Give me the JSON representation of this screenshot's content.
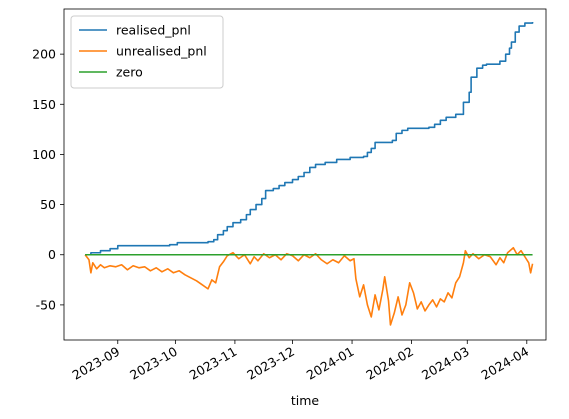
{
  "chart_data": {
    "type": "line",
    "xlabel": "time",
    "ylabel": "",
    "title": "",
    "x_axis_kind": "date",
    "xlim": [
      "2023-08-04",
      "2024-04-11"
    ],
    "ylim": [
      -85,
      245
    ],
    "x_ticks": [
      {
        "date": "2023-09-01",
        "label": "2023-09"
      },
      {
        "date": "2023-10-01",
        "label": "2023-10"
      },
      {
        "date": "2023-11-01",
        "label": "2023-11"
      },
      {
        "date": "2023-12-01",
        "label": "2023-12"
      },
      {
        "date": "2024-01-01",
        "label": "2024-01"
      },
      {
        "date": "2024-02-01",
        "label": "2024-02"
      },
      {
        "date": "2024-03-01",
        "label": "2024-03"
      },
      {
        "date": "2024-04-01",
        "label": "2024-04"
      }
    ],
    "y_ticks": [
      -50,
      0,
      50,
      100,
      150,
      200
    ],
    "grid": false,
    "legend_position": "upper-left",
    "series": [
      {
        "name": "realised_pnl",
        "color": "#1f77b4",
        "step": true,
        "points": [
          [
            "2023-08-15",
            0
          ],
          [
            "2023-08-18",
            2
          ],
          [
            "2023-08-23",
            4
          ],
          [
            "2023-08-28",
            6
          ],
          [
            "2023-09-01",
            9
          ],
          [
            "2023-09-18",
            9
          ],
          [
            "2023-09-28",
            10
          ],
          [
            "2023-10-02",
            12
          ],
          [
            "2023-10-12",
            12
          ],
          [
            "2023-10-18",
            13
          ],
          [
            "2023-10-21",
            15
          ],
          [
            "2023-10-23",
            20
          ],
          [
            "2023-10-26",
            24
          ],
          [
            "2023-10-28",
            28
          ],
          [
            "2023-10-31",
            32
          ],
          [
            "2023-11-04",
            35
          ],
          [
            "2023-11-07",
            40
          ],
          [
            "2023-11-09",
            45
          ],
          [
            "2023-11-12",
            50
          ],
          [
            "2023-11-15",
            56
          ],
          [
            "2023-11-17",
            64
          ],
          [
            "2023-11-21",
            66
          ],
          [
            "2023-11-24",
            69
          ],
          [
            "2023-11-27",
            72
          ],
          [
            "2023-12-01",
            75
          ],
          [
            "2023-12-04",
            78
          ],
          [
            "2023-12-07",
            82
          ],
          [
            "2023-12-10",
            87
          ],
          [
            "2023-12-13",
            90
          ],
          [
            "2023-12-18",
            92
          ],
          [
            "2023-12-24",
            95
          ],
          [
            "2023-12-31",
            97
          ],
          [
            "2024-01-07",
            98
          ],
          [
            "2024-01-09",
            102
          ],
          [
            "2024-01-11",
            106
          ],
          [
            "2024-01-13",
            112
          ],
          [
            "2024-01-22",
            114
          ],
          [
            "2024-01-24",
            121
          ],
          [
            "2024-01-27",
            124
          ],
          [
            "2024-01-30",
            126
          ],
          [
            "2024-02-10",
            127
          ],
          [
            "2024-02-13",
            130
          ],
          [
            "2024-02-16",
            134
          ],
          [
            "2024-02-19",
            137
          ],
          [
            "2024-02-24",
            140
          ],
          [
            "2024-02-28",
            152
          ],
          [
            "2024-03-02",
            162
          ],
          [
            "2024-03-03",
            177
          ],
          [
            "2024-03-06",
            186
          ],
          [
            "2024-03-09",
            189
          ],
          [
            "2024-03-11",
            190
          ],
          [
            "2024-03-18",
            193
          ],
          [
            "2024-03-21",
            200
          ],
          [
            "2024-03-23",
            206
          ],
          [
            "2024-03-24",
            212
          ],
          [
            "2024-03-26",
            222
          ],
          [
            "2024-03-28",
            228
          ],
          [
            "2024-03-31",
            231
          ],
          [
            "2024-04-04",
            232
          ]
        ]
      },
      {
        "name": "unrealised_pnl",
        "color": "#ff7f0e",
        "step": false,
        "points": [
          [
            "2023-08-15",
            0
          ],
          [
            "2023-08-17",
            -5
          ],
          [
            "2023-08-18",
            -18
          ],
          [
            "2023-08-19",
            -8
          ],
          [
            "2023-08-21",
            -14
          ],
          [
            "2023-08-23",
            -10
          ],
          [
            "2023-08-25",
            -13
          ],
          [
            "2023-08-28",
            -11
          ],
          [
            "2023-08-31",
            -12
          ],
          [
            "2023-09-03",
            -10
          ],
          [
            "2023-09-06",
            -15
          ],
          [
            "2023-09-09",
            -11
          ],
          [
            "2023-09-12",
            -13
          ],
          [
            "2023-09-15",
            -12
          ],
          [
            "2023-09-18",
            -16
          ],
          [
            "2023-09-21",
            -13
          ],
          [
            "2023-09-24",
            -17
          ],
          [
            "2023-09-27",
            -14
          ],
          [
            "2023-09-30",
            -18
          ],
          [
            "2023-10-03",
            -16
          ],
          [
            "2023-10-06",
            -20
          ],
          [
            "2023-10-09",
            -23
          ],
          [
            "2023-10-12",
            -26
          ],
          [
            "2023-10-15",
            -30
          ],
          [
            "2023-10-18",
            -34
          ],
          [
            "2023-10-20",
            -25
          ],
          [
            "2023-10-22",
            -28
          ],
          [
            "2023-10-24",
            -12
          ],
          [
            "2023-10-26",
            -7
          ],
          [
            "2023-10-28",
            -1
          ],
          [
            "2023-10-31",
            2
          ],
          [
            "2023-11-03",
            -4
          ],
          [
            "2023-11-06",
            0
          ],
          [
            "2023-11-09",
            -9
          ],
          [
            "2023-11-11",
            -2
          ],
          [
            "2023-11-13",
            -6
          ],
          [
            "2023-11-16",
            1
          ],
          [
            "2023-11-19",
            -3
          ],
          [
            "2023-11-22",
            0
          ],
          [
            "2023-11-25",
            -5
          ],
          [
            "2023-11-28",
            1
          ],
          [
            "2023-12-01",
            -1
          ],
          [
            "2023-12-04",
            -6
          ],
          [
            "2023-12-07",
            0
          ],
          [
            "2023-12-10",
            -3
          ],
          [
            "2023-12-13",
            1
          ],
          [
            "2023-12-16",
            -5
          ],
          [
            "2023-12-19",
            -9
          ],
          [
            "2023-12-22",
            -5
          ],
          [
            "2023-12-25",
            -8
          ],
          [
            "2023-12-28",
            -1
          ],
          [
            "2023-12-31",
            -6
          ],
          [
            "2024-01-02",
            -4
          ],
          [
            "2024-01-03",
            -24
          ],
          [
            "2024-01-05",
            -42
          ],
          [
            "2024-01-07",
            -30
          ],
          [
            "2024-01-09",
            -50
          ],
          [
            "2024-01-11",
            -62
          ],
          [
            "2024-01-13",
            -40
          ],
          [
            "2024-01-15",
            -55
          ],
          [
            "2024-01-17",
            -35
          ],
          [
            "2024-01-18",
            -22
          ],
          [
            "2024-01-20",
            -46
          ],
          [
            "2024-01-21",
            -70
          ],
          [
            "2024-01-23",
            -58
          ],
          [
            "2024-01-25",
            -42
          ],
          [
            "2024-01-27",
            -60
          ],
          [
            "2024-01-29",
            -50
          ],
          [
            "2024-01-31",
            -28
          ],
          [
            "2024-02-02",
            -38
          ],
          [
            "2024-02-04",
            -54
          ],
          [
            "2024-02-06",
            -47
          ],
          [
            "2024-02-08",
            -56
          ],
          [
            "2024-02-10",
            -50
          ],
          [
            "2024-02-12",
            -45
          ],
          [
            "2024-02-14",
            -52
          ],
          [
            "2024-02-16",
            -44
          ],
          [
            "2024-02-18",
            -47
          ],
          [
            "2024-02-20",
            -38
          ],
          [
            "2024-02-22",
            -43
          ],
          [
            "2024-02-24",
            -28
          ],
          [
            "2024-02-26",
            -22
          ],
          [
            "2024-02-28",
            -8
          ],
          [
            "2024-02-29",
            4
          ],
          [
            "2024-03-02",
            -3
          ],
          [
            "2024-03-04",
            1
          ],
          [
            "2024-03-07",
            -4
          ],
          [
            "2024-03-10",
            0
          ],
          [
            "2024-03-13",
            -2
          ],
          [
            "2024-03-16",
            -10
          ],
          [
            "2024-03-18",
            -3
          ],
          [
            "2024-03-20",
            -8
          ],
          [
            "2024-03-22",
            2
          ],
          [
            "2024-03-25",
            7
          ],
          [
            "2024-03-27",
            0
          ],
          [
            "2024-03-29",
            4
          ],
          [
            "2024-03-31",
            -2
          ],
          [
            "2024-04-02",
            -8
          ],
          [
            "2024-04-03",
            -18
          ],
          [
            "2024-04-04",
            -9
          ]
        ]
      },
      {
        "name": "zero",
        "color": "#2ca02c",
        "step": false,
        "points": [
          [
            "2023-08-15",
            0
          ],
          [
            "2024-04-04",
            0
          ]
        ]
      }
    ]
  }
}
